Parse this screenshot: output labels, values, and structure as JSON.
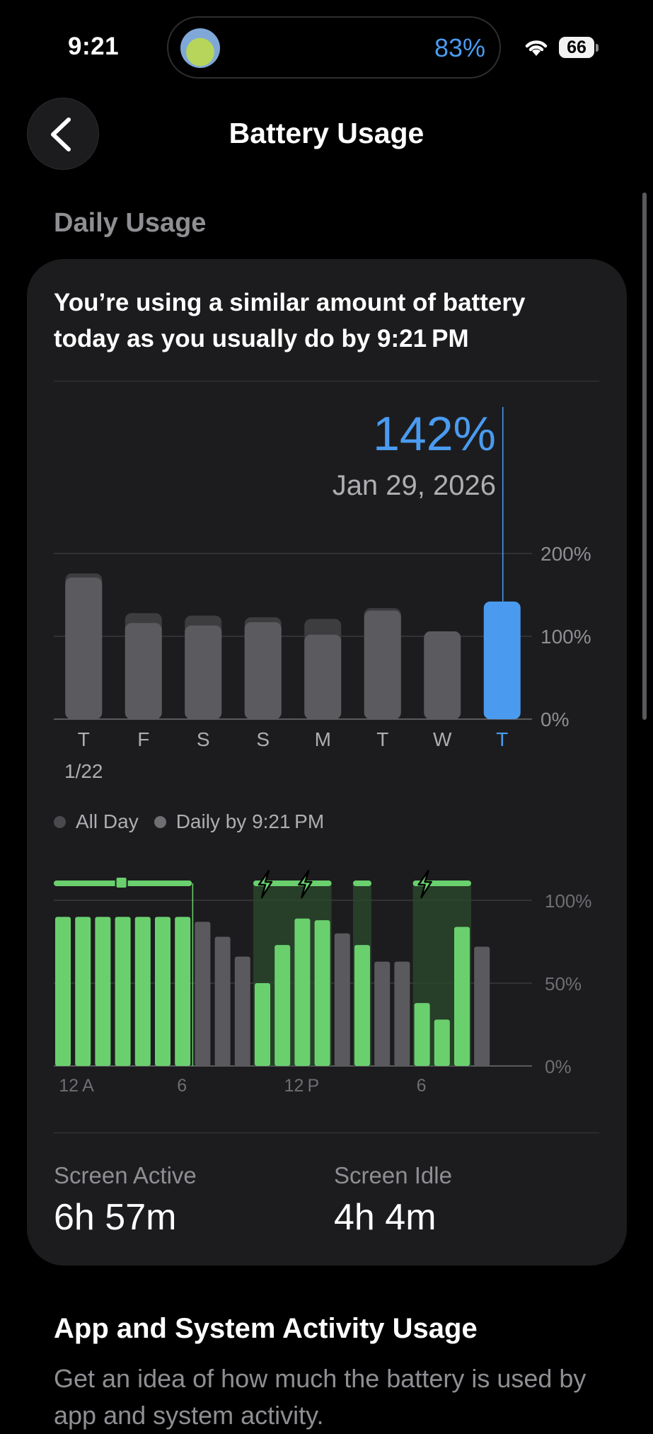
{
  "status": {
    "time": "9:21",
    "island_percent": "83%",
    "battery_level": "66",
    "icons": [
      "wifi-icon",
      "battery-icon",
      "app-avatar-icon"
    ]
  },
  "nav": {
    "title": "Battery Usage",
    "back_icon": "chevron-left-icon"
  },
  "section": {
    "title": "Daily Usage"
  },
  "card": {
    "headline": "You’re using a similar amount of battery today as you usually do by 9:21 PM",
    "selected_value": "142%",
    "selected_date": "Jan 29, 2026",
    "legend": [
      "All Day",
      "Daily by 9:21 PM"
    ],
    "stats": [
      {
        "label": "Screen Active",
        "value": "6h 57m"
      },
      {
        "label": "Screen Idle",
        "value": "4h 4m"
      }
    ]
  },
  "chart_data": [
    {
      "type": "bar",
      "categories": [
        "T",
        "F",
        "S",
        "S",
        "M",
        "T",
        "W",
        "T"
      ],
      "first_date_label": "1/22",
      "series": [
        {
          "name": "All Day",
          "values": [
            176,
            128,
            125,
            123,
            121,
            134,
            null,
            null
          ]
        },
        {
          "name": "Daily by 9:21 PM",
          "values": [
            171,
            116,
            113,
            117,
            102,
            131,
            106,
            142
          ]
        }
      ],
      "highlight_index": 7,
      "ylim": [
        0,
        200
      ],
      "yticks": [
        "200%",
        "100%",
        "0%"
      ],
      "colors": {
        "all_day": "#3d3d40",
        "by_time": "#5b5b5f",
        "highlight": "#4a9bf0"
      }
    },
    {
      "type": "bar",
      "xticks": [
        {
          "index": 0,
          "label": "12 A"
        },
        {
          "index": 6,
          "label": "6"
        },
        {
          "index": 12,
          "label": "12 P"
        },
        {
          "index": 18,
          "label": "6"
        }
      ],
      "values": [
        90,
        90,
        90,
        90,
        90,
        90,
        90,
        87,
        78,
        66,
        50,
        73,
        89,
        88,
        80,
        73,
        63,
        63,
        38,
        28,
        84,
        72
      ],
      "charging_state": [
        true,
        true,
        true,
        true,
        true,
        true,
        true,
        false,
        false,
        false,
        true,
        true,
        true,
        true,
        false,
        true,
        false,
        false,
        true,
        true,
        true,
        false
      ],
      "charging_indicators": [
        10,
        12,
        18
      ],
      "ylim": [
        0,
        100
      ],
      "yticks": [
        "100%",
        "50%",
        "0%"
      ],
      "colors": {
        "charging": "#6ad06e",
        "discharging": "#5a5a5e",
        "charging_band": "#2b4a2e"
      }
    }
  ],
  "app_section": {
    "title": "App and System Activity Usage",
    "description": "Get an idea of how much the battery is used by app and system activity."
  }
}
